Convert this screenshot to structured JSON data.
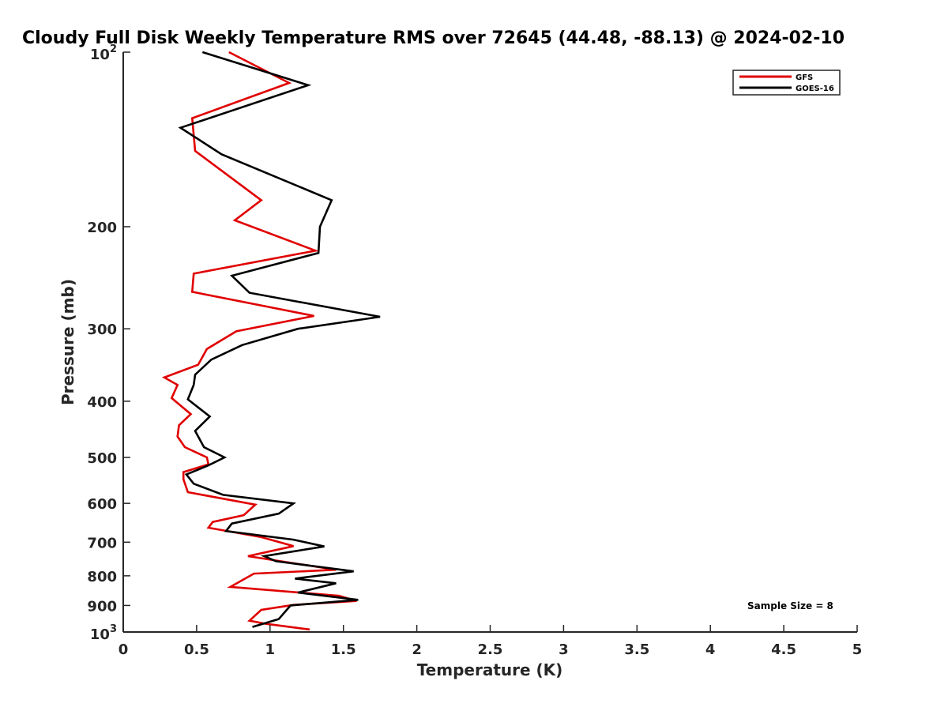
{
  "chart_data": {
    "type": "line",
    "title": "Cloudy Full Disk Weekly Temperature RMS over 72645 (44.48, -88.13) @ 2024-02-10",
    "xlabel": "Temperature (K)",
    "ylabel": "Pressure (mb)",
    "xlim": [
      0,
      5
    ],
    "ylim": [
      100,
      1000
    ],
    "y_scale": "log",
    "y_reversed": true,
    "grid": false,
    "legend_position": "top-right",
    "x_ticks": [
      {
        "value": 0,
        "label": "0"
      },
      {
        "value": 0.5,
        "label": "0.5"
      },
      {
        "value": 1,
        "label": "1"
      },
      {
        "value": 1.5,
        "label": "1.5"
      },
      {
        "value": 2,
        "label": "2"
      },
      {
        "value": 2.5,
        "label": "2.5"
      },
      {
        "value": 3,
        "label": "3"
      },
      {
        "value": 3.5,
        "label": "3.5"
      },
      {
        "value": 4,
        "label": "4"
      },
      {
        "value": 4.5,
        "label": "4.5"
      },
      {
        "value": 5,
        "label": "5"
      }
    ],
    "y_ticks": [
      {
        "value": 100,
        "base": "10",
        "exp": "2"
      },
      {
        "value": 200,
        "label": "200"
      },
      {
        "value": 300,
        "label": "300"
      },
      {
        "value": 400,
        "label": "400"
      },
      {
        "value": 500,
        "label": "500"
      },
      {
        "value": 600,
        "label": "600"
      },
      {
        "value": 700,
        "label": "700"
      },
      {
        "value": 800,
        "label": "800"
      },
      {
        "value": 900,
        "label": "900"
      },
      {
        "value": 1000,
        "base": "10",
        "exp": "3"
      }
    ],
    "annotation": "Sample Size = 8",
    "series": [
      {
        "name": "GFS",
        "color": "#e00000",
        "points": [
          [
            0.72,
            100
          ],
          [
            1.13,
            113
          ],
          [
            0.47,
            130
          ],
          [
            0.49,
            148
          ],
          [
            0.94,
            180
          ],
          [
            0.76,
            195
          ],
          [
            1.31,
            220
          ],
          [
            0.48,
            241
          ],
          [
            0.47,
            259
          ],
          [
            1.3,
            285
          ],
          [
            0.77,
            303
          ],
          [
            0.57,
            325
          ],
          [
            0.51,
            346
          ],
          [
            0.28,
            364
          ],
          [
            0.37,
            375
          ],
          [
            0.33,
            395
          ],
          [
            0.46,
            421
          ],
          [
            0.38,
            440
          ],
          [
            0.37,
            460
          ],
          [
            0.42,
            480
          ],
          [
            0.57,
            500
          ],
          [
            0.58,
            514
          ],
          [
            0.41,
            530
          ],
          [
            0.41,
            545
          ],
          [
            0.44,
            574
          ],
          [
            0.9,
            603
          ],
          [
            0.82,
            629
          ],
          [
            0.61,
            646
          ],
          [
            0.58,
            661
          ],
          [
            0.94,
            686
          ],
          [
            1.16,
            711
          ],
          [
            0.85,
            740
          ],
          [
            1.45,
            781
          ],
          [
            0.89,
            793
          ],
          [
            0.73,
            836
          ],
          [
            1.47,
            866
          ],
          [
            1.59,
            884
          ],
          [
            1.16,
            898
          ],
          [
            0.94,
            916
          ],
          [
            0.86,
            956
          ],
          [
            0.97,
            968
          ],
          [
            1.27,
            990
          ]
        ]
      },
      {
        "name": "GOES-16",
        "color": "#000000",
        "points": [
          [
            0.54,
            100
          ],
          [
            1.26,
            114
          ],
          [
            0.39,
            135
          ],
          [
            0.67,
            150
          ],
          [
            1.42,
            180
          ],
          [
            1.34,
            200
          ],
          [
            1.33,
            222
          ],
          [
            0.74,
            243
          ],
          [
            0.86,
            260
          ],
          [
            1.75,
            286
          ],
          [
            1.19,
            300
          ],
          [
            0.81,
            320
          ],
          [
            0.6,
            339
          ],
          [
            0.49,
            360
          ],
          [
            0.48,
            375
          ],
          [
            0.44,
            397
          ],
          [
            0.59,
            425
          ],
          [
            0.49,
            450
          ],
          [
            0.55,
            480
          ],
          [
            0.69,
            500
          ],
          [
            0.58,
            516
          ],
          [
            0.43,
            535
          ],
          [
            0.48,
            555
          ],
          [
            0.68,
            580
          ],
          [
            1.16,
            600
          ],
          [
            1.06,
            625
          ],
          [
            0.74,
            650
          ],
          [
            0.7,
            670
          ],
          [
            1.16,
            693
          ],
          [
            1.37,
            712
          ],
          [
            0.96,
            740
          ],
          [
            1.04,
            755
          ],
          [
            1.57,
            786
          ],
          [
            1.17,
            809
          ],
          [
            1.45,
            824
          ],
          [
            1.19,
            855
          ],
          [
            1.6,
            880
          ],
          [
            1.14,
            900
          ],
          [
            1.06,
            950
          ],
          [
            0.88,
            980
          ]
        ]
      }
    ]
  }
}
